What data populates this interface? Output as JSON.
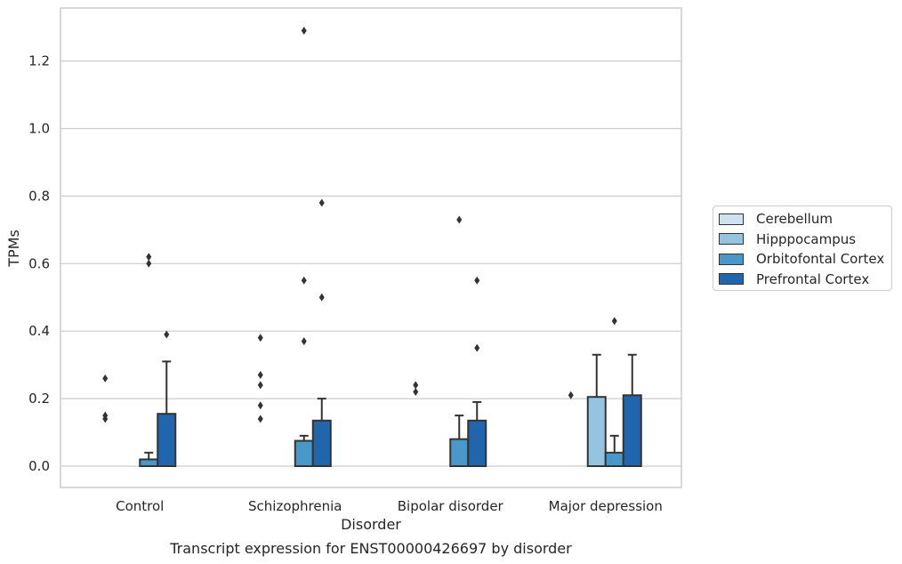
{
  "chart_data": {
    "type": "bar",
    "title": "Transcript expression for ENST00000426697 by disorder",
    "xlabel": "Disorder",
    "ylabel": "TPMs",
    "categories": [
      "Control",
      "Schizophrenia",
      "Bipolar disorder",
      "Major depression"
    ],
    "ylim": [
      -0.065,
      1.35
    ],
    "yticks": [
      0.0,
      0.2,
      0.4,
      0.6,
      0.8,
      1.0,
      1.2
    ],
    "ytick_labels": [
      "0.0",
      "0.2",
      "0.4",
      "0.6",
      "0.8",
      "1.0",
      "1.2"
    ],
    "grid": "horizontal",
    "legend_position": "right",
    "series": [
      {
        "name": "Cerebellum",
        "color": "#d0e1f2",
        "values": [
          0.0,
          0.0,
          0.0,
          0.0
        ],
        "whisker": [
          0.0,
          0.0,
          0.0,
          0.0
        ],
        "outliers": [
          [],
          [],
          [],
          []
        ]
      },
      {
        "name": "Hipppocampus",
        "color": "#94c4df",
        "values": [
          0.0,
          0.0,
          0.0,
          0.205
        ],
        "whisker": [
          0.0,
          0.0,
          0.0,
          0.33
        ],
        "outliers": [
          [
            0.14,
            0.15,
            0.26
          ],
          [
            0.14,
            0.18,
            0.24,
            0.27,
            0.38
          ],
          [
            0.22,
            0.24
          ],
          [
            0.21
          ]
        ]
      },
      {
        "name": "Orbitofontal Cortex",
        "color": "#4a98c9",
        "values": [
          0.02,
          0.075,
          0.08,
          0.04
        ],
        "whisker": [
          0.04,
          0.09,
          0.15,
          0.09
        ],
        "outliers": [
          [
            0.6,
            0.62
          ],
          [
            0.37,
            0.55,
            1.29
          ],
          [
            0.73
          ],
          [
            0.43
          ]
        ]
      },
      {
        "name": "Prefrontal Cortex",
        "color": "#2166ac",
        "values": [
          0.155,
          0.135,
          0.135,
          0.21
        ],
        "whisker": [
          0.31,
          0.2,
          0.19,
          0.33
        ],
        "outliers": [
          [
            0.39
          ],
          [
            0.5,
            0.78
          ],
          [
            0.35,
            0.55
          ],
          []
        ]
      }
    ]
  }
}
